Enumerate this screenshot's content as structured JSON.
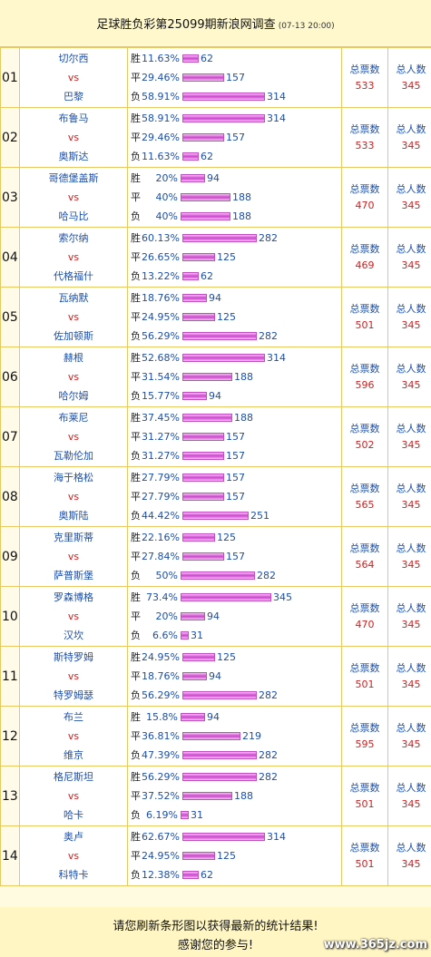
{
  "header": {
    "title": "足球胜负彩第25099期新浪网调查",
    "subtitle": "(07-13 20:00)"
  },
  "labels": {
    "vs": "vs",
    "win": "胜",
    "draw": "平",
    "lose": "负",
    "total_votes": "总票数",
    "total_people": "总人数"
  },
  "bar_color": "#cc44cc",
  "matches": [
    {
      "no": "01",
      "home": "切尔西",
      "away": "巴黎",
      "win_pct": "11.63%",
      "win": 62,
      "draw_pct": "29.46%",
      "draw": 157,
      "lose_pct": "58.91%",
      "lose": 314,
      "votes": "533",
      "people": "345"
    },
    {
      "no": "02",
      "home": "布鲁马",
      "away": "奥斯达",
      "win_pct": "58.91%",
      "win": 314,
      "draw_pct": "29.46%",
      "draw": 157,
      "lose_pct": "11.63%",
      "lose": 62,
      "votes": "533",
      "people": "345"
    },
    {
      "no": "03",
      "home": "哥德堡盖斯",
      "away": "哈马比",
      "win_pct": "20%",
      "win": 94,
      "draw_pct": "40%",
      "draw": 188,
      "lose_pct": "40%",
      "lose": 188,
      "votes": "470",
      "people": "345"
    },
    {
      "no": "04",
      "home": "索尔纳",
      "away": "代格福什",
      "win_pct": "60.13%",
      "win": 282,
      "draw_pct": "26.65%",
      "draw": 125,
      "lose_pct": "13.22%",
      "lose": 62,
      "votes": "469",
      "people": "345"
    },
    {
      "no": "05",
      "home": "瓦纳默",
      "away": "佐加顿斯",
      "win_pct": "18.76%",
      "win": 94,
      "draw_pct": "24.95%",
      "draw": 125,
      "lose_pct": "56.29%",
      "lose": 282,
      "votes": "501",
      "people": "345"
    },
    {
      "no": "06",
      "home": "赫根",
      "away": "哈尔姆",
      "win_pct": "52.68%",
      "win": 314,
      "draw_pct": "31.54%",
      "draw": 188,
      "lose_pct": "15.77%",
      "lose": 94,
      "votes": "596",
      "people": "345"
    },
    {
      "no": "07",
      "home": "布莱尼",
      "away": "瓦勒伦加",
      "win_pct": "37.45%",
      "win": 188,
      "draw_pct": "31.27%",
      "draw": 157,
      "lose_pct": "31.27%",
      "lose": 157,
      "votes": "502",
      "people": "345"
    },
    {
      "no": "08",
      "home": "海于格松",
      "away": "奥斯陆",
      "win_pct": "27.79%",
      "win": 157,
      "draw_pct": "27.79%",
      "draw": 157,
      "lose_pct": "44.42%",
      "lose": 251,
      "votes": "565",
      "people": "345"
    },
    {
      "no": "09",
      "home": "克里斯蒂",
      "away": "萨普斯堡",
      "win_pct": "22.16%",
      "win": 125,
      "draw_pct": "27.84%",
      "draw": 157,
      "lose_pct": "50%",
      "lose": 282,
      "votes": "564",
      "people": "345"
    },
    {
      "no": "10",
      "home": "罗森博格",
      "away": "汉坎",
      "win_pct": "73.4%",
      "win": 345,
      "draw_pct": "20%",
      "draw": 94,
      "lose_pct": "6.6%",
      "lose": 31,
      "votes": "470",
      "people": "345"
    },
    {
      "no": "11",
      "home": "斯特罗姆",
      "away": "特罗姆瑟",
      "win_pct": "24.95%",
      "win": 125,
      "draw_pct": "18.76%",
      "draw": 94,
      "lose_pct": "56.29%",
      "lose": 282,
      "votes": "501",
      "people": "345"
    },
    {
      "no": "12",
      "home": "布兰",
      "away": "维京",
      "win_pct": "15.8%",
      "win": 94,
      "draw_pct": "36.81%",
      "draw": 219,
      "lose_pct": "47.39%",
      "lose": 282,
      "votes": "595",
      "people": "345"
    },
    {
      "no": "13",
      "home": "格尼斯坦",
      "away": "哈卡",
      "win_pct": "56.29%",
      "win": 282,
      "draw_pct": "37.52%",
      "draw": 188,
      "lose_pct": "6.19%",
      "lose": 31,
      "votes": "501",
      "people": "345"
    },
    {
      "no": "14",
      "home": "奥卢",
      "away": "科特卡",
      "win_pct": "62.67%",
      "win": 314,
      "draw_pct": "24.95%",
      "draw": 125,
      "lose_pct": "12.38%",
      "lose": 62,
      "votes": "501",
      "people": "345"
    }
  ],
  "footer": {
    "line1": "请您刷新条形图以获得最新的统计结果!",
    "line2": "感谢您的参与!"
  },
  "watermark": "www.365jz.com"
}
